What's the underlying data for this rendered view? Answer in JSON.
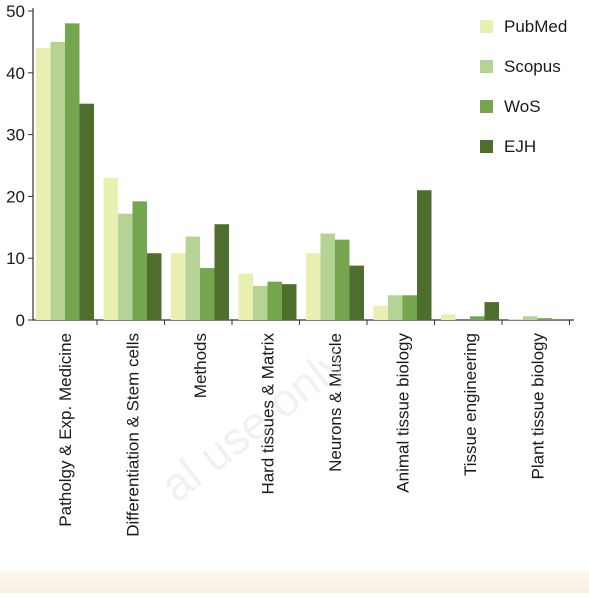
{
  "chart_data": {
    "type": "bar",
    "title": "",
    "xlabel": "",
    "ylabel": "",
    "ylim": [
      0,
      52
    ],
    "yticks": [
      0,
      10,
      20,
      30,
      40,
      50
    ],
    "grid": false,
    "legend_position": "top-right",
    "categories": [
      "Patholgy & Exp. Medicine",
      "Differentiation & Stem cells",
      "Methods",
      "Hard tissues & Matrix",
      "Neurons & Muscle",
      "Animal tissue biology",
      "Tissue engineering",
      "Plant tissue biology"
    ],
    "series": [
      {
        "name": "PubMed",
        "color": "#e8efb0",
        "values": [
          44,
          23,
          10.8,
          7.5,
          10.8,
          2.3,
          0.9,
          0.1
        ]
      },
      {
        "name": "Scopus",
        "color": "#b5d394",
        "values": [
          45,
          17.2,
          13.5,
          5.5,
          14,
          4,
          0,
          0.6
        ]
      },
      {
        "name": "WoS",
        "color": "#76a550",
        "values": [
          48,
          19.2,
          8.4,
          6.2,
          13,
          4,
          0.6,
          0.3
        ]
      },
      {
        "name": "EJH",
        "color": "#4e6e2e",
        "values": [
          35,
          10.8,
          15.5,
          5.8,
          8.8,
          21,
          2.9,
          0.1
        ]
      }
    ]
  },
  "watermark_text": "al use only"
}
